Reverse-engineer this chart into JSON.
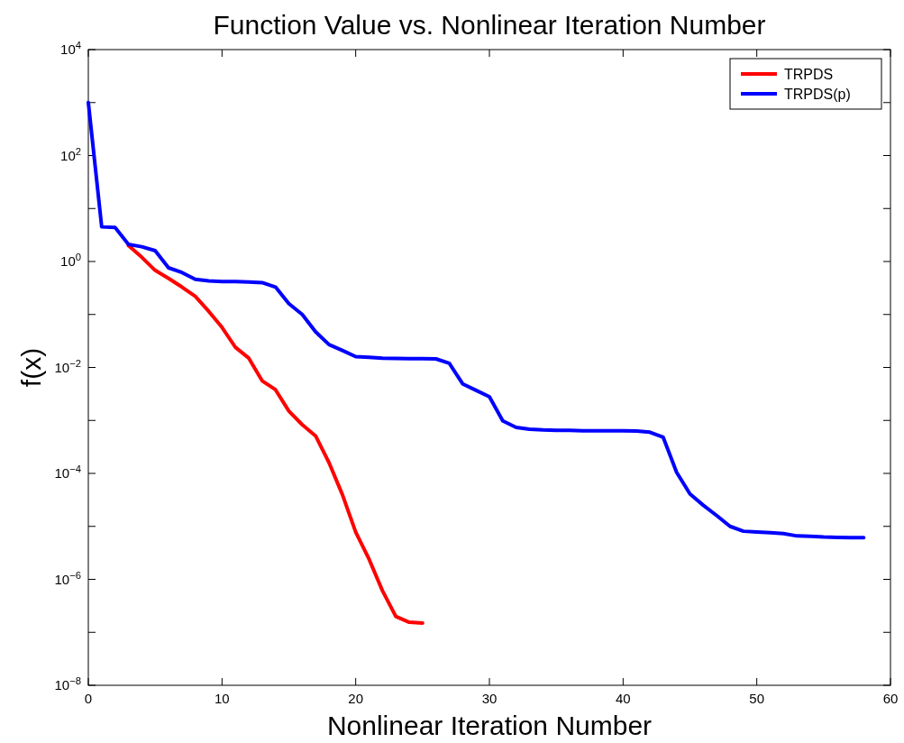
{
  "chart_data": {
    "type": "line",
    "title": "Function Value vs. Nonlinear Iteration Number",
    "xlabel": "Nonlinear Iteration Number",
    "ylabel": "f(x)",
    "log": "y",
    "grid": false,
    "legend": "top right",
    "line_style": "solid",
    "marker": "none",
    "xlim": [
      0,
      60
    ],
    "xticks": [
      0,
      10,
      20,
      30,
      40,
      50,
      60
    ],
    "ylim": [
      1e-08,
      10000.0
    ],
    "yticks": [
      {
        "value": 1e-08,
        "label": "10$^{−8}$"
      },
      {
        "value": 1e-07,
        "label": null
      },
      {
        "value": 1e-06,
        "label": "10$^{−6}$"
      },
      {
        "value": 1e-05,
        "label": null
      },
      {
        "value": 0.0001,
        "label": "10$^{−4}$"
      },
      {
        "value": 0.001,
        "label": null
      },
      {
        "value": 0.01,
        "label": "10$^{−2}$"
      },
      {
        "value": 0.1,
        "label": null
      },
      {
        "value": 1,
        "label": "10$^{0}$"
      },
      {
        "value": 10,
        "label": null
      },
      {
        "value": 100,
        "label": "10$^{2}$"
      },
      {
        "value": 1000,
        "label": null
      },
      {
        "value": 10000,
        "label": "10$^{4}$"
      }
    ],
    "series": [
      {
        "name": "TRPDS",
        "color": "#ff0000",
        "x": [
          3,
          4,
          5,
          6,
          7,
          8,
          9,
          10,
          11,
          12,
          13,
          14,
          15,
          16,
          17,
          18,
          19,
          20,
          21,
          22,
          23,
          24,
          25
        ],
        "values": [
          2.0,
          1.2,
          0.68,
          0.48,
          0.33,
          0.22,
          0.115,
          0.057,
          0.024,
          0.015,
          0.0056,
          0.0038,
          0.0015,
          0.00083,
          0.00051,
          0.00016,
          4e-05,
          7.8e-06,
          2.4e-06,
          6.1e-07,
          2e-07,
          1.55e-07,
          1.5e-07
        ]
      },
      {
        "name": "TRPDS(p)",
        "color": "#0000ff",
        "x": [
          0,
          1,
          2,
          3,
          4,
          5,
          6,
          7,
          8,
          9,
          10,
          11,
          12,
          13,
          14,
          15,
          16,
          17,
          18,
          19,
          20,
          21,
          22,
          23,
          24,
          25,
          26,
          27,
          28,
          29,
          30,
          31,
          32,
          33,
          34,
          35,
          36,
          37,
          38,
          39,
          40,
          41,
          42,
          43,
          44,
          45,
          46,
          47,
          48,
          49,
          50,
          51,
          52,
          53,
          54,
          55,
          56,
          57,
          58
        ],
        "values": [
          1000,
          4.5,
          4.4,
          2.1,
          1.9,
          1.6,
          0.76,
          0.62,
          0.46,
          0.43,
          0.42,
          0.42,
          0.41,
          0.4,
          0.33,
          0.16,
          0.1,
          0.047,
          0.027,
          0.021,
          0.016,
          0.0155,
          0.015,
          0.0148,
          0.0147,
          0.0147,
          0.0145,
          0.012,
          0.0049,
          0.0037,
          0.0028,
          0.00098,
          0.00074,
          0.00068,
          0.00066,
          0.00065,
          0.00065,
          0.00064,
          0.00064,
          0.00064,
          0.00064,
          0.00063,
          0.0006,
          0.00048,
          0.000105,
          4.1e-05,
          2.5e-05,
          1.6e-05,
          1e-05,
          8.1e-06,
          7.8e-06,
          7.6e-06,
          7.3e-06,
          6.6e-06,
          6.5e-06,
          6.3e-06,
          6.2e-06,
          6.1e-06,
          6.1e-06
        ]
      }
    ]
  }
}
